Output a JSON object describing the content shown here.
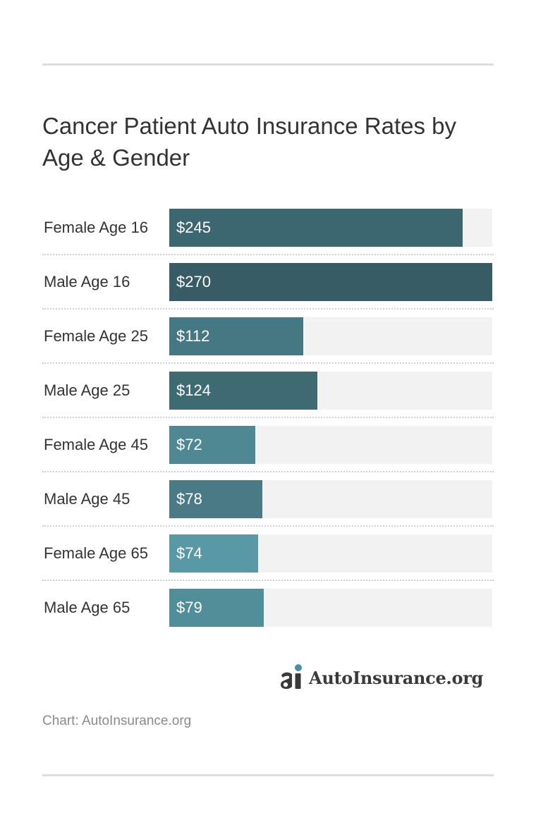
{
  "chart_data": {
    "type": "bar",
    "orientation": "horizontal",
    "title": "Cancer Patient Auto Insurance Rates by Age & Gender",
    "categories": [
      "Female Age 16",
      "Male Age 16",
      "Female Age 25",
      "Male Age 25",
      "Female Age 45",
      "Male Age 45",
      "Female Age 65",
      "Male Age 65"
    ],
    "values": [
      245,
      270,
      112,
      124,
      72,
      78,
      74,
      79
    ],
    "value_labels": [
      "$245",
      "$270",
      "$112",
      "$124",
      "$72",
      "$78",
      "$74",
      "$79"
    ],
    "xlim": [
      0,
      270
    ],
    "xlabel": "",
    "ylabel": "",
    "grid": false,
    "colors": [
      "#3c6770",
      "#375c66",
      "#457882",
      "#3e6a74",
      "#4f8892",
      "#4a7a86",
      "#5999a6",
      "#508e99"
    ],
    "track_color": "#f2f2f2"
  },
  "brand": {
    "name": "AutoInsurance.org",
    "icon": "autoinsurance-logo-icon"
  },
  "source": "Chart: AutoInsurance.org"
}
